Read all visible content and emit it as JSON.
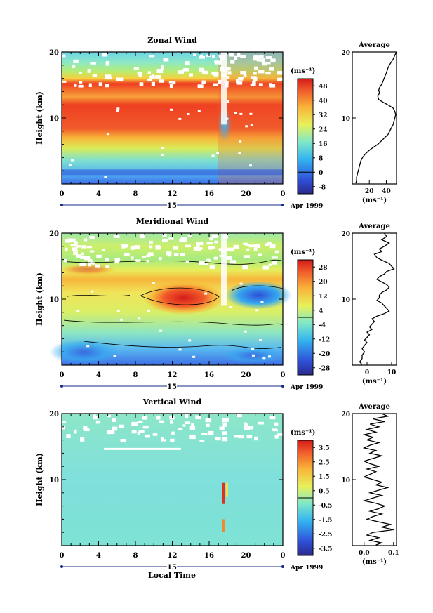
{
  "figure": {
    "date_label": "Apr 1999",
    "date_day": "15",
    "xlabel": "Local Time",
    "ylabel": "Height (km)",
    "unit_label": "(ms⁻¹)",
    "avg_title": "Average"
  },
  "chart_data": [
    {
      "type": "heatmap",
      "title": "Zonal Wind",
      "x_ticks": [
        "0",
        "4",
        "8",
        "12",
        "16",
        "20",
        "0"
      ],
      "y_ticks": [
        "10",
        "20"
      ],
      "ylim": [
        0,
        20
      ],
      "colorbar_ticks": [
        "48",
        "40",
        "32",
        "24",
        "16",
        "8",
        "0",
        "-8"
      ],
      "colorbar_range": [
        -12,
        52
      ],
      "avg_x_ticks": [
        "20",
        "40"
      ],
      "avg_xlim": [
        0,
        52
      ],
      "avg_profile": [
        [
          52,
          20
        ],
        [
          50,
          19.5
        ],
        [
          48,
          18.9
        ],
        [
          46,
          18.5
        ],
        [
          44,
          18.1
        ],
        [
          42,
          17.6
        ],
        [
          41,
          17.2
        ],
        [
          40,
          16.8
        ],
        [
          38,
          16.2
        ],
        [
          36,
          15.5
        ],
        [
          34,
          15.0
        ],
        [
          32,
          14.6
        ],
        [
          31,
          14.2
        ],
        [
          32,
          13.8
        ],
        [
          30,
          13.3
        ],
        [
          31,
          12.8
        ],
        [
          36,
          12.4
        ],
        [
          43,
          11.9
        ],
        [
          48,
          11.5
        ],
        [
          50,
          11.0
        ],
        [
          51,
          10.5
        ],
        [
          50,
          10.0
        ],
        [
          49,
          9.5
        ],
        [
          48,
          9.0
        ],
        [
          46,
          8.5
        ],
        [
          44,
          8.0
        ],
        [
          42,
          7.5
        ],
        [
          38,
          7.0
        ],
        [
          34,
          6.5
        ],
        [
          30,
          6.0
        ],
        [
          24,
          5.5
        ],
        [
          19,
          5.0
        ],
        [
          15,
          4.5
        ],
        [
          12,
          4.0
        ],
        [
          10,
          3.5
        ],
        [
          9,
          3.0
        ],
        [
          8,
          2.5
        ],
        [
          7,
          2.0
        ],
        [
          6,
          1.5
        ],
        [
          5,
          1.0
        ],
        [
          5,
          0.5
        ],
        [
          4,
          0.1
        ]
      ]
    },
    {
      "type": "heatmap",
      "title": "Meridional Wind",
      "x_ticks": [
        "0",
        "4",
        "8",
        "12",
        "16",
        "20",
        "0"
      ],
      "y_ticks": [
        "10",
        "20"
      ],
      "ylim": [
        0,
        20
      ],
      "colorbar_ticks": [
        "28",
        "20",
        "12",
        "4",
        "-4",
        "-12",
        "-20",
        "-28"
      ],
      "colorbar_range": [
        -32,
        32
      ],
      "avg_x_ticks": [
        "0",
        "10"
      ],
      "avg_xlim": [
        -6,
        12
      ],
      "avg_profile": [
        [
          7,
          20
        ],
        [
          8,
          19.5
        ],
        [
          6,
          19.0
        ],
        [
          9,
          18.5
        ],
        [
          7,
          18.0
        ],
        [
          5,
          17.6
        ],
        [
          6,
          17.2
        ],
        [
          3,
          16.8
        ],
        [
          4,
          16.3
        ],
        [
          6,
          15.9
        ],
        [
          9,
          15.4
        ],
        [
          10,
          15.0
        ],
        [
          11,
          14.6
        ],
        [
          8,
          14.2
        ],
        [
          7,
          13.8
        ],
        [
          5,
          13.4
        ],
        [
          4,
          13.0
        ],
        [
          6,
          12.6
        ],
        [
          8,
          12.2
        ],
        [
          9,
          11.8
        ],
        [
          8,
          11.4
        ],
        [
          6,
          11.0
        ],
        [
          5,
          10.6
        ],
        [
          5,
          10.2
        ],
        [
          4,
          9.8
        ],
        [
          6,
          9.4
        ],
        [
          7,
          9.0
        ],
        [
          8,
          8.6
        ],
        [
          9,
          8.2
        ],
        [
          7,
          7.8
        ],
        [
          4,
          7.4
        ],
        [
          2,
          7.0
        ],
        [
          3,
          6.6
        ],
        [
          2,
          6.2
        ],
        [
          1,
          5.8
        ],
        [
          2,
          5.4
        ],
        [
          0,
          5.0
        ],
        [
          1,
          4.6
        ],
        [
          0,
          4.2
        ],
        [
          -1,
          3.8
        ],
        [
          0,
          3.4
        ],
        [
          -1,
          3.0
        ],
        [
          -2,
          2.5
        ],
        [
          -1,
          2.0
        ],
        [
          -2,
          1.5
        ],
        [
          -2,
          1.0
        ],
        [
          -3,
          0.5
        ],
        [
          -2,
          0.1
        ]
      ]
    },
    {
      "type": "heatmap",
      "title": "Vertical Wind",
      "x_ticks": [
        "0",
        "4",
        "8",
        "12",
        "16",
        "20",
        "0"
      ],
      "y_ticks": [
        "10",
        "20"
      ],
      "ylim": [
        0,
        20
      ],
      "colorbar_ticks": [
        "3.5",
        "2.5",
        "1.5",
        "0.5",
        "-0.5",
        "-1.5",
        "-2.5",
        "-3.5"
      ],
      "colorbar_range": [
        -4,
        4
      ],
      "avg_x_ticks": [
        "0.0",
        "0.1"
      ],
      "avg_xlim": [
        -0.04,
        0.11
      ],
      "avg_profile": [
        [
          0.06,
          20
        ],
        [
          0.08,
          19.6
        ],
        [
          0.03,
          19.2
        ],
        [
          0.07,
          18.8
        ],
        [
          0.02,
          18.4
        ],
        [
          0.05,
          18.0
        ],
        [
          0.01,
          17.6
        ],
        [
          0.04,
          17.2
        ],
        [
          0.0,
          16.8
        ],
        [
          0.03,
          16.4
        ],
        [
          0.01,
          16.0
        ],
        [
          0.05,
          15.6
        ],
        [
          0.02,
          15.2
        ],
        [
          0.0,
          14.8
        ],
        [
          0.04,
          14.4
        ],
        [
          0.02,
          14.0
        ],
        [
          0.06,
          13.6
        ],
        [
          0.03,
          13.2
        ],
        [
          0.0,
          12.8
        ],
        [
          0.02,
          12.4
        ],
        [
          0.05,
          12.0
        ],
        [
          0.01,
          11.6
        ],
        [
          0.04,
          11.2
        ],
        [
          0.02,
          10.8
        ],
        [
          0.0,
          10.4
        ],
        [
          0.03,
          10.0
        ],
        [
          0.06,
          9.6
        ],
        [
          0.04,
          9.2
        ],
        [
          0.08,
          8.8
        ],
        [
          0.05,
          8.4
        ],
        [
          0.02,
          8.0
        ],
        [
          0.06,
          7.6
        ],
        [
          0.03,
          7.2
        ],
        [
          0.0,
          6.8
        ],
        [
          0.04,
          6.4
        ],
        [
          0.07,
          6.0
        ],
        [
          0.05,
          5.6
        ],
        [
          0.02,
          5.2
        ],
        [
          0.06,
          4.8
        ],
        [
          0.03,
          4.4
        ],
        [
          0.01,
          4.0
        ],
        [
          0.05,
          3.6
        ],
        [
          0.09,
          3.2
        ],
        [
          0.06,
          2.8
        ],
        [
          0.1,
          2.4
        ],
        [
          0.03,
          2.0
        ],
        [
          0.01,
          1.6
        ],
        [
          0.05,
          1.2
        ],
        [
          0.02,
          0.8
        ],
        [
          0.06,
          0.4
        ],
        [
          0.04,
          0.1
        ]
      ]
    }
  ]
}
